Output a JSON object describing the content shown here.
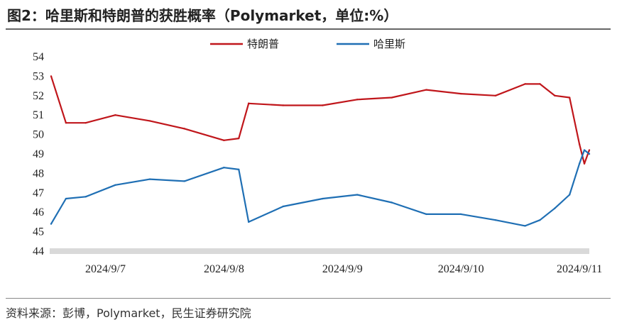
{
  "title": "图2：哈里斯和特朗普的获胜概率（Polymarket，单位:%）",
  "source": "资料来源：彭博，Polymarket，民生证券研究院",
  "chart_data": {
    "type": "line",
    "title": "图2：哈里斯和特朗普的获胜概率（Polymarket，单位:%）",
    "xlabel": "",
    "ylabel": "",
    "ylim": [
      44,
      54
    ],
    "yticks": [
      "44",
      "45",
      "46",
      "47",
      "48",
      "49",
      "50",
      "51",
      "52",
      "53",
      "54"
    ],
    "xticks": [
      "2024/9/7",
      "2024/9/8",
      "2024/9/9",
      "2024/9/10",
      "2024/9/11"
    ],
    "x_range": [
      "2024/9/6 13:00",
      "2024/9/11 02:00"
    ],
    "grid": false,
    "legend": "top-center",
    "x": [
      "2024/9/6 13:00",
      "2024/9/6 16:00",
      "2024/9/6 20:00",
      "2024/9/7 02:00",
      "2024/9/7 09:00",
      "2024/9/7 16:00",
      "2024/9/8 00:00",
      "2024/9/8 03:00",
      "2024/9/8 05:00",
      "2024/9/8 12:00",
      "2024/9/8 20:00",
      "2024/9/9 03:00",
      "2024/9/9 10:00",
      "2024/9/9 17:00",
      "2024/9/10 00:00",
      "2024/9/10 07:00",
      "2024/9/10 13:00",
      "2024/9/10 16:00",
      "2024/9/10 19:00",
      "2024/9/10 22:00",
      "2024/9/11 00:00",
      "2024/9/11 01:00",
      "2024/9/11 02:00"
    ],
    "series": [
      {
        "name": "特朗普",
        "color": "#c0161b",
        "values": [
          53.0,
          50.6,
          50.6,
          51.0,
          50.7,
          50.3,
          49.7,
          49.8,
          51.6,
          51.5,
          51.5,
          51.8,
          51.9,
          52.3,
          52.1,
          52.0,
          52.6,
          52.6,
          52.0,
          51.9,
          49.5,
          48.5,
          49.2
        ]
      },
      {
        "name": "哈里斯",
        "color": "#1f6fb4",
        "values": [
          45.4,
          46.7,
          46.8,
          47.4,
          47.7,
          47.6,
          48.3,
          48.2,
          45.5,
          46.3,
          46.7,
          46.9,
          46.5,
          45.9,
          45.9,
          45.6,
          45.3,
          45.6,
          46.2,
          46.9,
          48.5,
          49.2,
          49.0
        ]
      }
    ]
  }
}
